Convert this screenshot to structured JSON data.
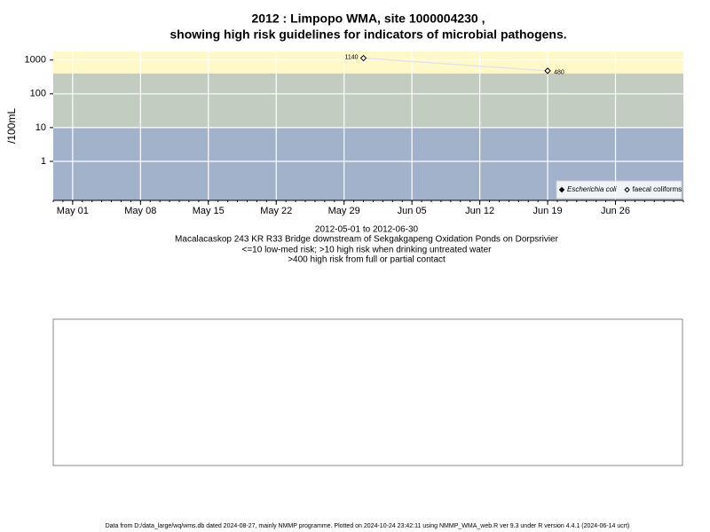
{
  "chart_data": {
    "type": "line",
    "title": [
      "2012 : Limpopo WMA, site 1000004230 ,",
      "showing high risk guidelines for indicators of microbial pathogens."
    ],
    "y_label": "/100mL",
    "annotations": [
      "2012-05-01 to 2012-06-30",
      "Macalacaskop 243 KR R33 Bridge downstream of Sekgakgapeng Oxidation Ponds on Dorpsrivier",
      "<=10 low-med risk; >10 high risk when drinking untreated water",
      ">400 high risk from full or partial contact"
    ],
    "log_y": true,
    "grid": true,
    "legend": "lower right",
    "ylim": [
      0.07,
      1800
    ],
    "yticks": [
      1,
      10,
      100,
      1000
    ],
    "xlim": [
      "2012-04-29",
      "2012-07-03"
    ],
    "xticks": [
      {
        "value": "2012-05-01",
        "label": "May 01"
      },
      {
        "value": "2012-05-08",
        "label": "May 08"
      },
      {
        "value": "2012-05-15",
        "label": "May 15"
      },
      {
        "value": "2012-05-22",
        "label": "May 22"
      },
      {
        "value": "2012-05-29",
        "label": "May 29"
      },
      {
        "value": "2012-06-05",
        "label": "Jun 05"
      },
      {
        "value": "2012-06-12",
        "label": "Jun 12"
      },
      {
        "value": "2012-06-19",
        "label": "Jun 19"
      },
      {
        "value": "2012-06-26",
        "label": "Jun 26"
      }
    ],
    "bands": [
      {
        "from": 400,
        "to": 1800,
        "color": "#fff8c8"
      },
      {
        "from": 10,
        "to": 400,
        "color": "#c2ccc0"
      },
      {
        "from": 0.07,
        "to": 10,
        "color": "#a2b2ca"
      }
    ],
    "series": [
      {
        "name": "Escherichia coli",
        "marker": "filled",
        "color": "#000000",
        "x": [],
        "values": []
      },
      {
        "name": "faecal coliforms",
        "marker": "open",
        "color": "#000000",
        "line_color": "#e4e4e4",
        "x": [
          "2012-05-31",
          "2012-06-19"
        ],
        "values": [
          1140,
          480
        ]
      }
    ]
  },
  "empty_panel": true,
  "footer": "Data from D:/data_large/wq/wms.db dated 2024-08-27, mainly NMMP programme. Plotted on 2024-10-24 23:42:11 using NMMP_WMA_web.R ver 9.3 under R version 4.4.1 (2024-06-14 ucrt)"
}
